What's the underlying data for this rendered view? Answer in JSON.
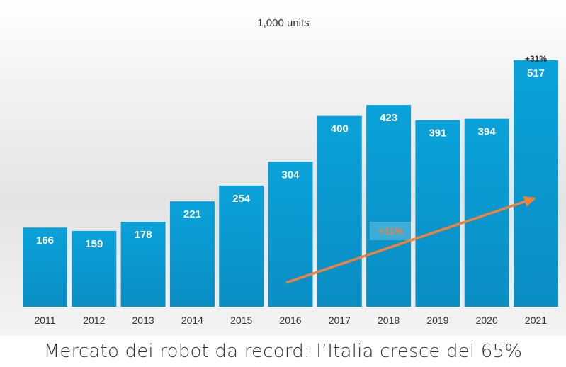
{
  "caption": "Mercato dei robot da record: l’Italia cresce del 65%",
  "chart_data": {
    "type": "bar",
    "title": "1,000 units",
    "categories": [
      "2011",
      "2012",
      "2013",
      "2014",
      "2015",
      "2016",
      "2017",
      "2018",
      "2019",
      "2020",
      "2021"
    ],
    "values": [
      166,
      159,
      178,
      221,
      254,
      304,
      400,
      423,
      391,
      394,
      517
    ],
    "ylim": [
      0,
      560
    ],
    "grid": false,
    "legend": "none",
    "annotations": [
      {
        "text": "+31%",
        "category": "2021"
      },
      {
        "text": "+11%",
        "type": "trend-arrow",
        "from": "2016",
        "to": "2021"
      }
    ],
    "colors": {
      "bar": "#0a9ad1",
      "bar_label": "#ffffff",
      "trend": "#f0813a",
      "annotation": "#333333"
    }
  }
}
